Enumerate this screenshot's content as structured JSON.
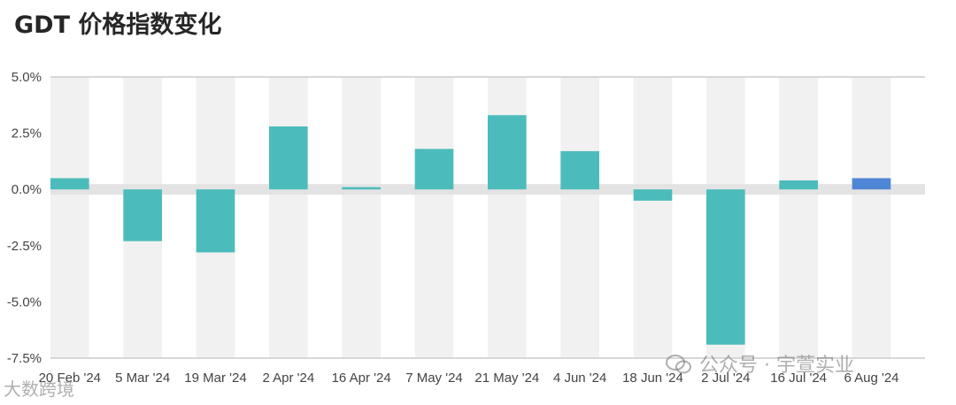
{
  "title": "GDT 价格指数变化",
  "chart_data": {
    "type": "bar",
    "categories": [
      "20 Feb '24",
      "5 Mar '24",
      "19 Mar '24",
      "2 Apr '24",
      "16 Apr '24",
      "7 May '24",
      "21 May '24",
      "4 Jun '24",
      "18 Jun '24",
      "2 Jul '24",
      "16 Jul '24",
      "6 Aug '24"
    ],
    "values": [
      0.5,
      -2.3,
      -2.8,
      2.8,
      0.1,
      1.8,
      3.3,
      1.7,
      -0.5,
      -6.9,
      0.4,
      0.5
    ],
    "ylim": [
      -7.5,
      5.0
    ],
    "yticks": [
      "5.0%",
      "2.5%",
      "0.0%",
      "-2.5%",
      "-5.0%",
      "-7.5%"
    ],
    "ytick_values": [
      5.0,
      2.5,
      0.0,
      -2.5,
      -5.0,
      -7.5
    ],
    "xlabel": "",
    "ylabel": "",
    "colors": {
      "bar": "#4cbbbb",
      "highlight": "#4f86d6",
      "band": "#f1f1f1",
      "zero_band": "#e3e3e3",
      "axis": "#cccccc"
    },
    "highlight_index": 11
  },
  "watermarks": {
    "wechat": "公众号 · 宇萱实业",
    "source": "大数跨境"
  }
}
